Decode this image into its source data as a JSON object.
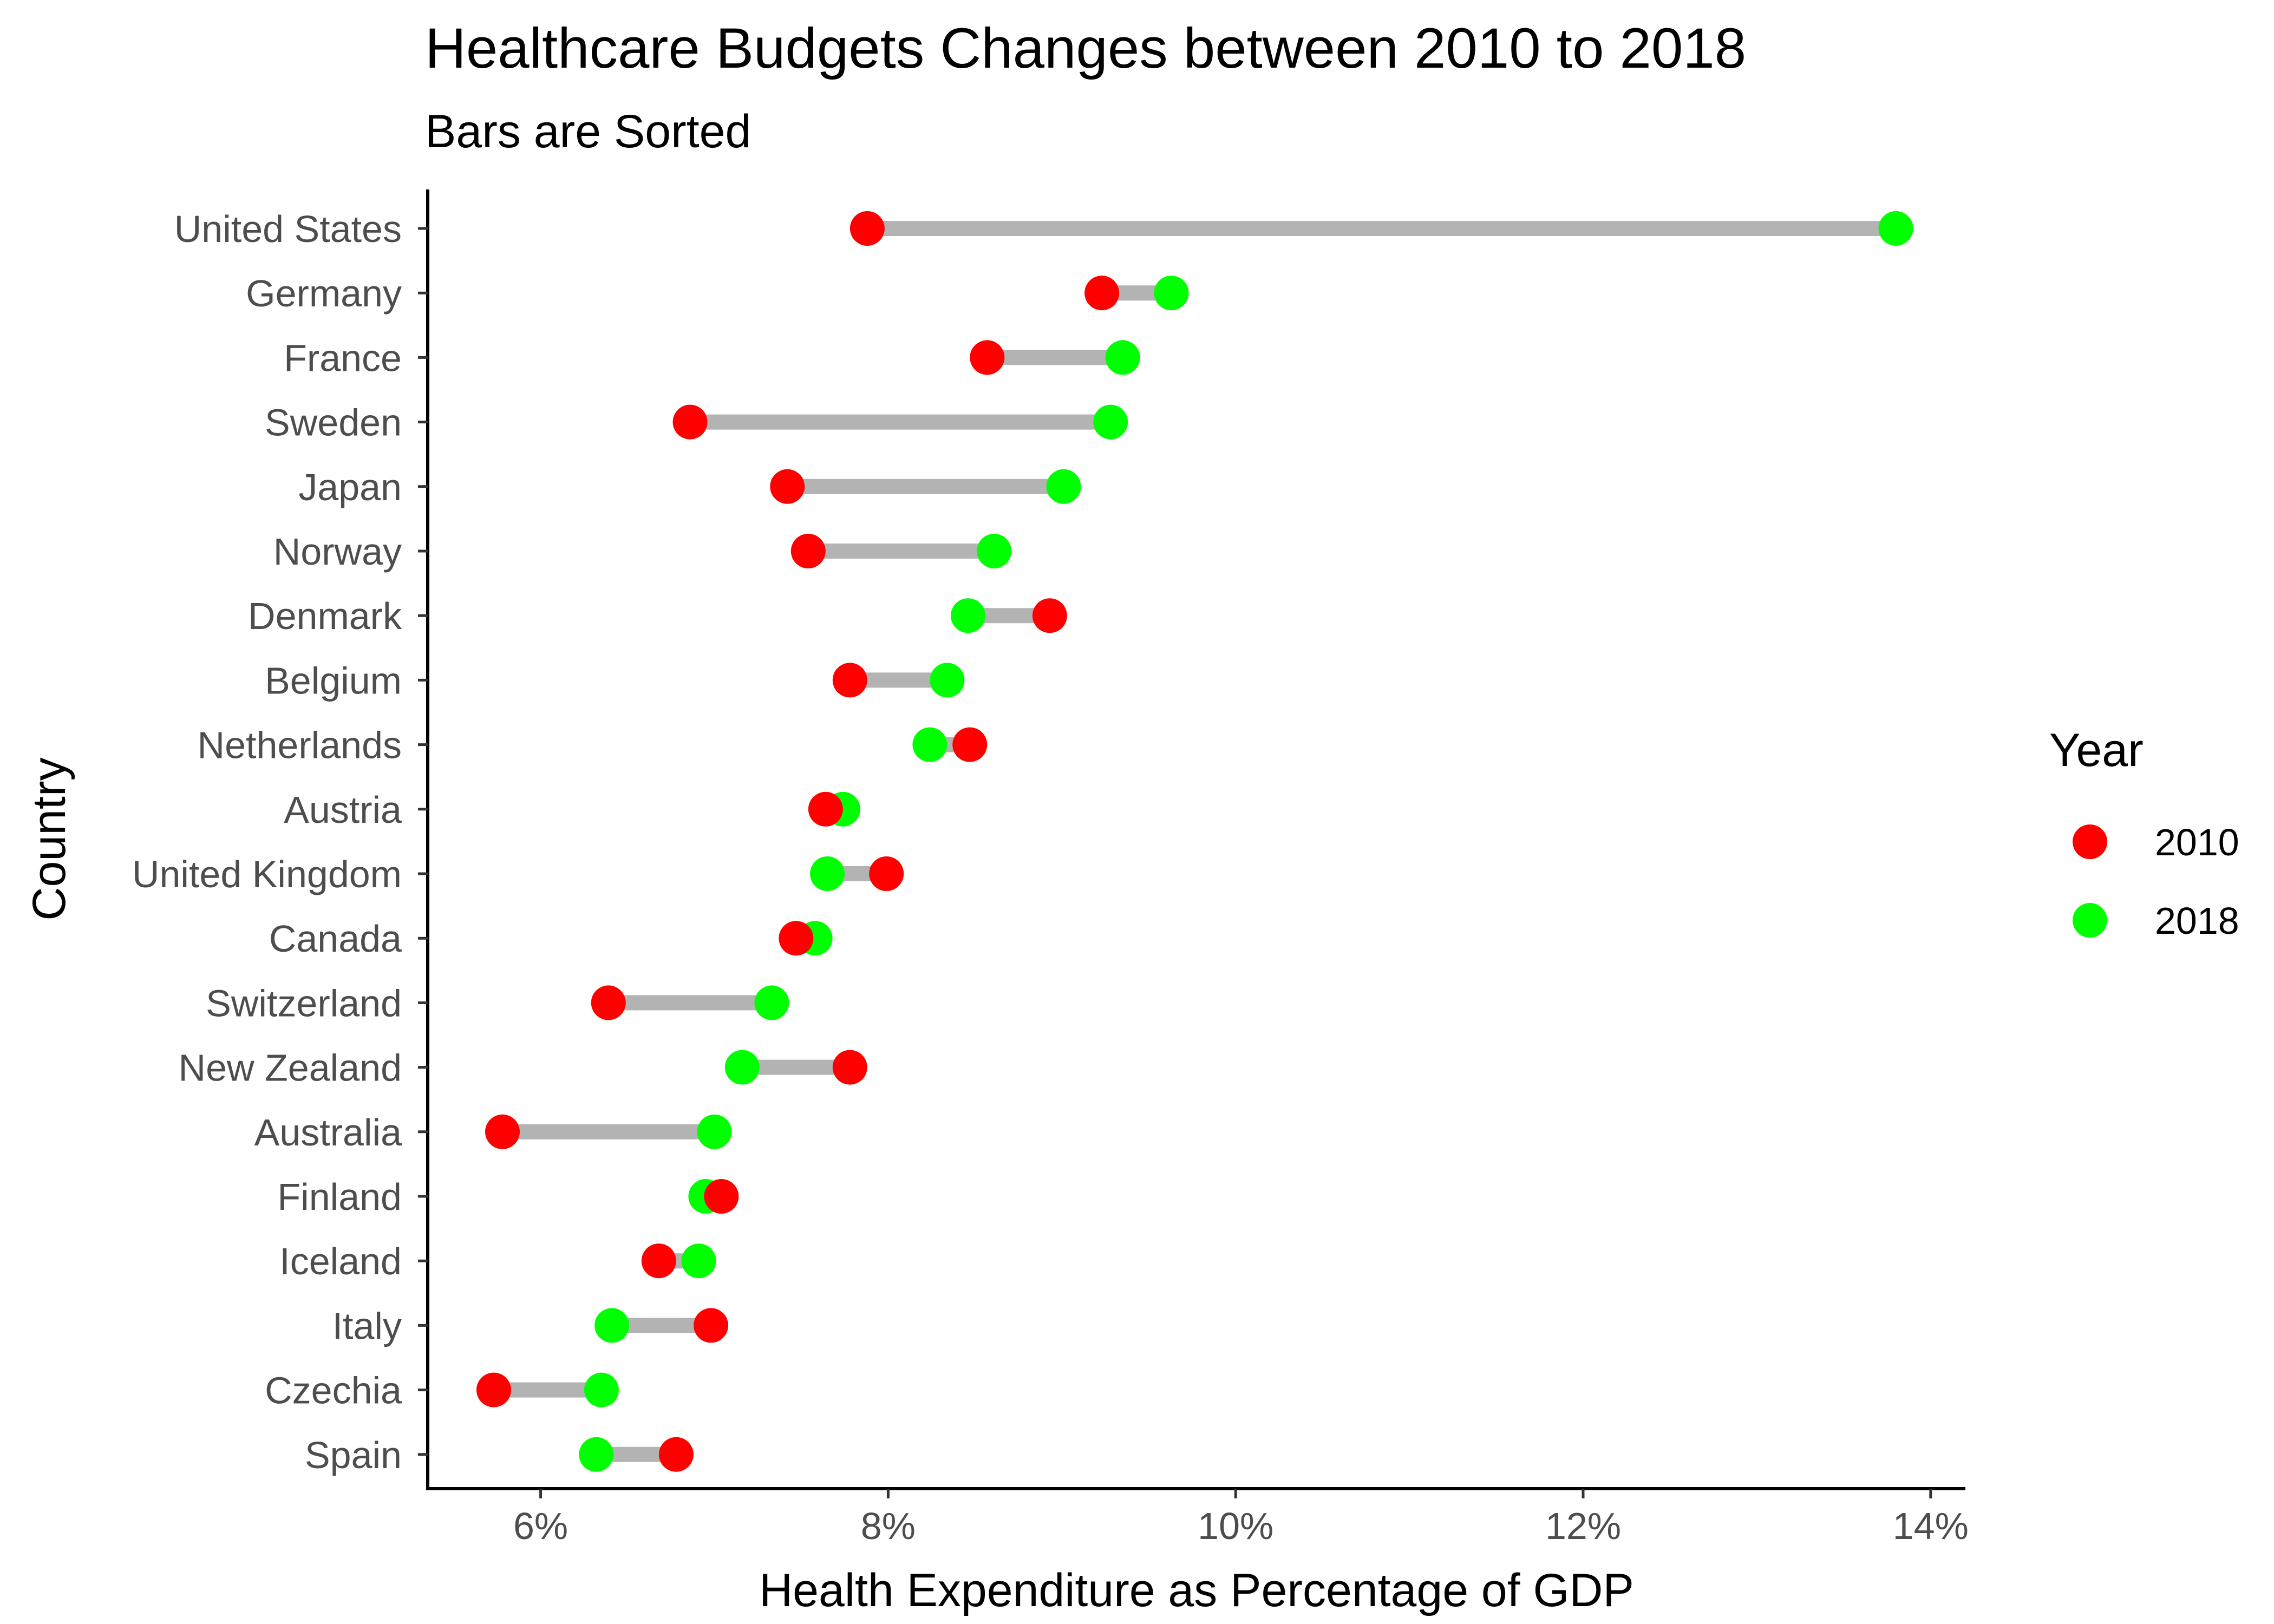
{
  "chart_data": {
    "type": "dumbbell",
    "title": "Healthcare Budgets Changes between 2010 to 2018",
    "subtitle": "Bars are Sorted",
    "xlabel": "Health Expenditure as Percentage of GDP",
    "ylabel": "Country",
    "xlim": [
      5.35,
      14.2
    ],
    "x_ticks": [
      6,
      8,
      10,
      12,
      14
    ],
    "x_tick_labels": [
      "6%",
      "8%",
      "10%",
      "12%",
      "14%"
    ],
    "grid": false,
    "legend": {
      "title": "Year",
      "position": "right",
      "entries": [
        {
          "label": "2010",
          "color": "#ff0000"
        },
        {
          "label": "2018",
          "color": "#00ff00"
        }
      ]
    },
    "segment_color": "#b3b3b3",
    "categories": [
      "United States",
      "Germany",
      "France",
      "Sweden",
      "Japan",
      "Norway",
      "Denmark",
      "Belgium",
      "Netherlands",
      "Austria",
      "United Kingdom",
      "Canada",
      "Switzerland",
      "New Zealand",
      "Australia",
      "Finland",
      "Iceland",
      "Italy",
      "Czechia",
      "Spain"
    ],
    "series": [
      {
        "name": "2010",
        "color": "#ff0000",
        "values": [
          7.88,
          9.23,
          8.57,
          6.86,
          7.42,
          7.54,
          8.93,
          7.78,
          8.47,
          7.64,
          7.99,
          7.47,
          6.39,
          7.78,
          5.78,
          7.04,
          6.68,
          6.98,
          5.73,
          6.78
        ]
      },
      {
        "name": "2018",
        "color": "#00ff00",
        "values": [
          13.8,
          9.63,
          9.35,
          9.28,
          9.01,
          8.61,
          8.46,
          8.34,
          8.24,
          7.74,
          7.65,
          7.58,
          7.33,
          7.16,
          7.0,
          6.95,
          6.91,
          6.41,
          6.35,
          6.32
        ]
      }
    ]
  }
}
